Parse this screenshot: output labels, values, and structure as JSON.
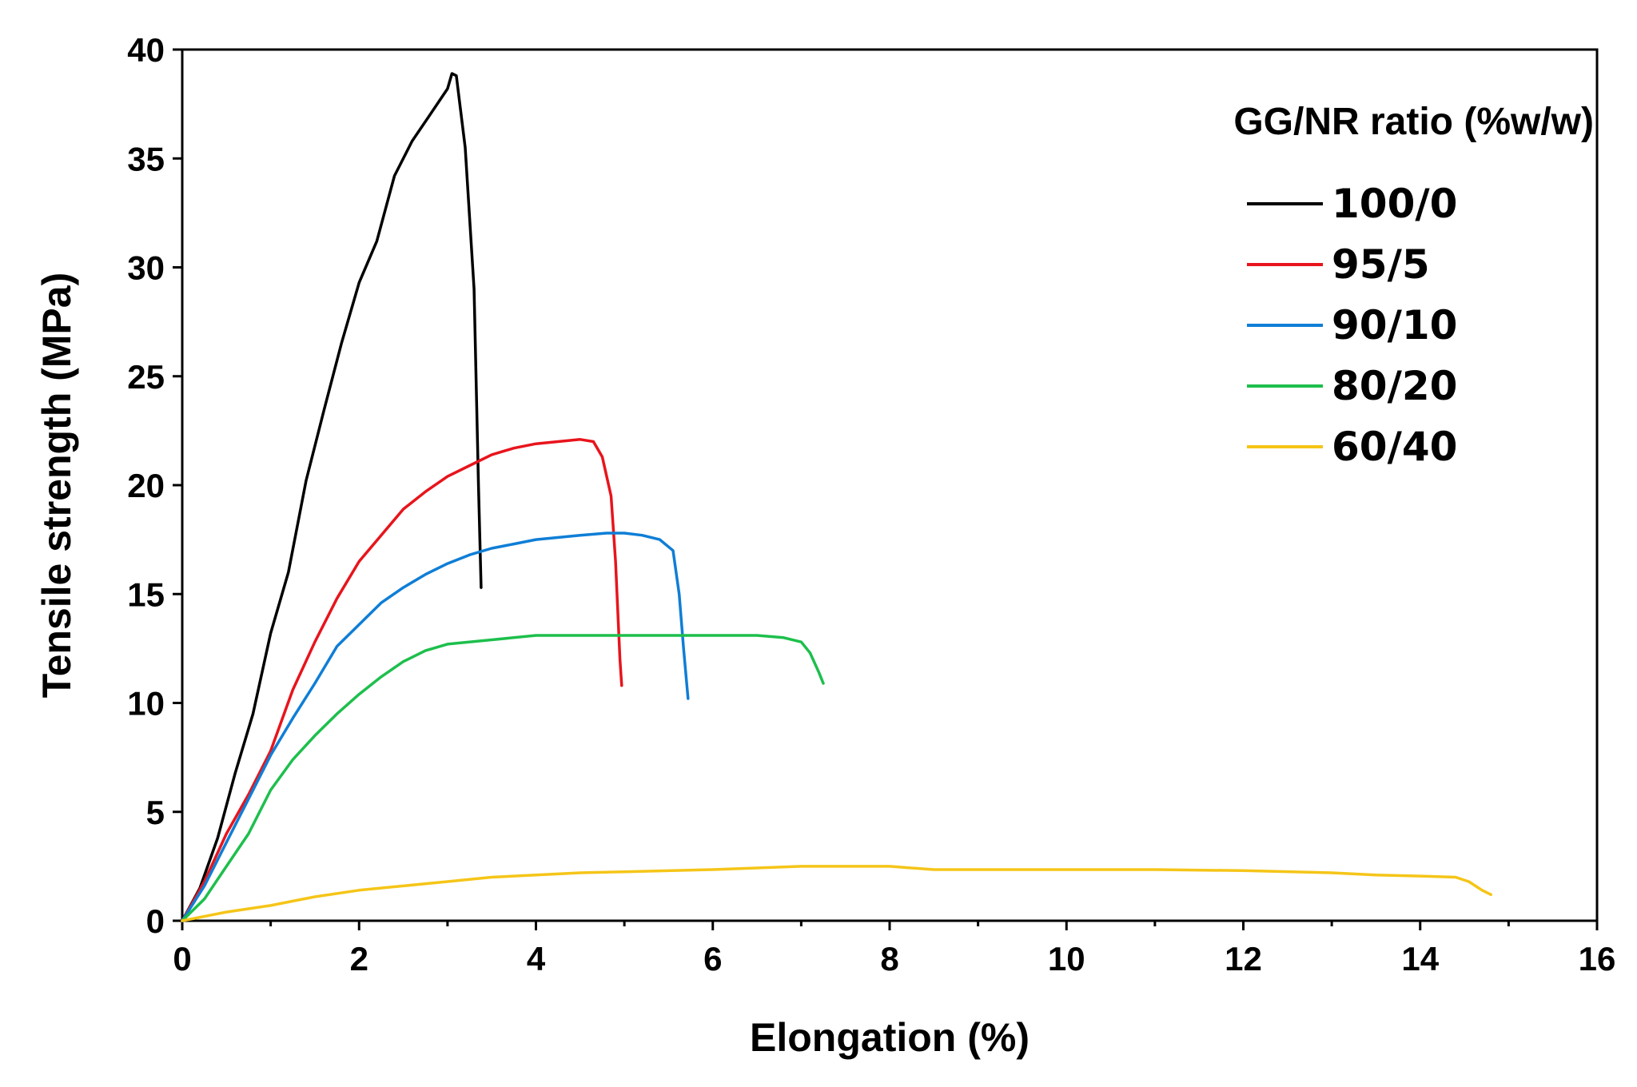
{
  "chart_data": {
    "type": "line",
    "title": "",
    "xlabel": "Elongation (%)",
    "ylabel": "Tensile strength (MPa)",
    "xlim": [
      0,
      16
    ],
    "ylim": [
      0,
      40
    ],
    "x_ticks": [
      0,
      2,
      4,
      6,
      8,
      10,
      12,
      14,
      16
    ],
    "y_ticks": [
      0,
      5,
      10,
      15,
      20,
      25,
      30,
      35,
      40
    ],
    "x_tick_labels": [
      "0",
      "2",
      "4",
      "6",
      "8",
      "10",
      "12",
      "14",
      "16"
    ],
    "y_tick_labels": [
      "0",
      "5",
      "10",
      "15",
      "20",
      "25",
      "30",
      "35",
      "40"
    ],
    "grid": false,
    "legend": {
      "title": "GG/NR ratio (%w/w)",
      "placement": "top-right"
    },
    "series": [
      {
        "name": "100/0",
        "color": "#000000",
        "points": [
          [
            0,
            0
          ],
          [
            0.2,
            1.5
          ],
          [
            0.4,
            3.8
          ],
          [
            0.6,
            6.8
          ],
          [
            0.8,
            9.5
          ],
          [
            1.0,
            13.2
          ],
          [
            1.2,
            16.0
          ],
          [
            1.4,
            20.2
          ],
          [
            1.6,
            23.4
          ],
          [
            1.8,
            26.5
          ],
          [
            2.0,
            29.3
          ],
          [
            2.2,
            31.2
          ],
          [
            2.4,
            34.2
          ],
          [
            2.6,
            35.8
          ],
          [
            2.8,
            37.0
          ],
          [
            3.0,
            38.2
          ],
          [
            3.05,
            38.9
          ],
          [
            3.1,
            38.8
          ],
          [
            3.2,
            35.5
          ],
          [
            3.3,
            29.0
          ],
          [
            3.35,
            20.0
          ],
          [
            3.38,
            15.3
          ]
        ]
      },
      {
        "name": "95/5",
        "color": "#e8141c",
        "points": [
          [
            0,
            0
          ],
          [
            0.25,
            1.8
          ],
          [
            0.5,
            4.0
          ],
          [
            0.75,
            5.8
          ],
          [
            1.0,
            7.8
          ],
          [
            1.25,
            10.6
          ],
          [
            1.5,
            12.8
          ],
          [
            1.75,
            14.8
          ],
          [
            2.0,
            16.5
          ],
          [
            2.25,
            17.7
          ],
          [
            2.5,
            18.9
          ],
          [
            2.75,
            19.7
          ],
          [
            3.0,
            20.4
          ],
          [
            3.25,
            20.9
          ],
          [
            3.5,
            21.4
          ],
          [
            3.75,
            21.7
          ],
          [
            4.0,
            21.9
          ],
          [
            4.25,
            22.0
          ],
          [
            4.5,
            22.1
          ],
          [
            4.65,
            22.0
          ],
          [
            4.75,
            21.3
          ],
          [
            4.85,
            19.5
          ],
          [
            4.9,
            16.5
          ],
          [
            4.95,
            12.0
          ],
          [
            4.97,
            10.8
          ]
        ]
      },
      {
        "name": "90/10",
        "color": "#0f7ed6",
        "points": [
          [
            0,
            0
          ],
          [
            0.25,
            1.6
          ],
          [
            0.5,
            3.6
          ],
          [
            0.75,
            5.6
          ],
          [
            1.0,
            7.6
          ],
          [
            1.25,
            9.3
          ],
          [
            1.5,
            10.9
          ],
          [
            1.75,
            12.6
          ],
          [
            2.0,
            13.6
          ],
          [
            2.25,
            14.6
          ],
          [
            2.5,
            15.3
          ],
          [
            2.75,
            15.9
          ],
          [
            3.0,
            16.4
          ],
          [
            3.25,
            16.8
          ],
          [
            3.5,
            17.1
          ],
          [
            3.75,
            17.3
          ],
          [
            4.0,
            17.5
          ],
          [
            4.5,
            17.7
          ],
          [
            4.8,
            17.8
          ],
          [
            5.0,
            17.8
          ],
          [
            5.2,
            17.7
          ],
          [
            5.4,
            17.5
          ],
          [
            5.55,
            17.0
          ],
          [
            5.62,
            15.0
          ],
          [
            5.67,
            12.5
          ],
          [
            5.72,
            10.2
          ]
        ]
      },
      {
        "name": "80/20",
        "color": "#1dbf4c",
        "points": [
          [
            0,
            0
          ],
          [
            0.25,
            1.0
          ],
          [
            0.5,
            2.5
          ],
          [
            0.75,
            4.0
          ],
          [
            1.0,
            6.0
          ],
          [
            1.25,
            7.4
          ],
          [
            1.5,
            8.5
          ],
          [
            1.75,
            9.5
          ],
          [
            2.0,
            10.4
          ],
          [
            2.25,
            11.2
          ],
          [
            2.5,
            11.9
          ],
          [
            2.75,
            12.4
          ],
          [
            3.0,
            12.7
          ],
          [
            3.5,
            12.9
          ],
          [
            4.0,
            13.1
          ],
          [
            4.5,
            13.1
          ],
          [
            5.0,
            13.1
          ],
          [
            5.5,
            13.1
          ],
          [
            6.0,
            13.1
          ],
          [
            6.5,
            13.1
          ],
          [
            6.8,
            13.0
          ],
          [
            7.0,
            12.8
          ],
          [
            7.1,
            12.3
          ],
          [
            7.2,
            11.4
          ],
          [
            7.25,
            10.9
          ]
        ]
      },
      {
        "name": "60/40",
        "color": "#f5c518",
        "points": [
          [
            0,
            0
          ],
          [
            0.5,
            0.4
          ],
          [
            1.0,
            0.7
          ],
          [
            1.5,
            1.1
          ],
          [
            2.0,
            1.4
          ],
          [
            2.5,
            1.6
          ],
          [
            3.0,
            1.8
          ],
          [
            3.5,
            2.0
          ],
          [
            4.0,
            2.1
          ],
          [
            4.5,
            2.2
          ],
          [
            5.0,
            2.25
          ],
          [
            6.0,
            2.35
          ],
          [
            7.0,
            2.5
          ],
          [
            8.0,
            2.5
          ],
          [
            8.5,
            2.35
          ],
          [
            9.0,
            2.35
          ],
          [
            10.0,
            2.35
          ],
          [
            11.0,
            2.35
          ],
          [
            12.0,
            2.3
          ],
          [
            13.0,
            2.2
          ],
          [
            13.5,
            2.1
          ],
          [
            14.0,
            2.05
          ],
          [
            14.4,
            2.0
          ],
          [
            14.55,
            1.8
          ],
          [
            14.7,
            1.4
          ],
          [
            14.8,
            1.2
          ]
        ]
      }
    ]
  }
}
